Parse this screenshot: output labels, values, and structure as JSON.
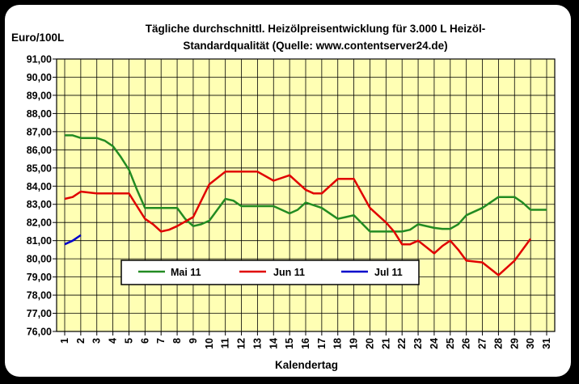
{
  "chart_data": {
    "type": "line",
    "title_line1": "Tägliche durchschnittl. Heizölpreisentwicklung für 3.000 L Heizöl-",
    "title_line2": "Standardqualität (Quelle: www.contentserver24.de)",
    "ylabel": "Euro/100L",
    "xlabel": "Kalendertag",
    "ylim": [
      76,
      91
    ],
    "xlim": [
      1,
      31
    ],
    "grid": true,
    "legend_position": "bottom-center",
    "yticks": [
      "76,00",
      "77,00",
      "78,00",
      "79,00",
      "80,00",
      "81,00",
      "82,00",
      "83,00",
      "84,00",
      "85,00",
      "86,00",
      "87,00",
      "88,00",
      "89,00",
      "90,00",
      "91,00"
    ],
    "xticks": [
      "1",
      "2",
      "3",
      "4",
      "5",
      "6",
      "7",
      "8",
      "9",
      "10",
      "11",
      "12",
      "13",
      "14",
      "15",
      "16",
      "17",
      "18",
      "19",
      "20",
      "21",
      "22",
      "23",
      "24",
      "25",
      "26",
      "27",
      "28",
      "29",
      "30",
      "31"
    ],
    "colors": {
      "plot_bg": "#FFFFB4",
      "grid": "#000000",
      "mai": "#228B22",
      "jun": "#E00000",
      "jul": "#0000CC"
    },
    "series": [
      {
        "name": "Mai 11",
        "x": [
          1,
          1.5,
          2,
          3,
          3.5,
          4,
          4.5,
          5,
          5.5,
          6,
          7,
          8,
          8.5,
          9,
          9.5,
          10,
          11,
          11.5,
          12,
          13,
          14,
          15,
          15.5,
          16,
          17,
          18,
          18.5,
          19,
          20,
          21,
          22,
          22.5,
          23,
          24,
          24.5,
          25,
          25.5,
          26,
          27,
          28,
          29,
          29.5,
          30,
          31
        ],
        "values": [
          86.8,
          86.8,
          86.65,
          86.65,
          86.5,
          86.2,
          85.6,
          84.9,
          83.8,
          82.8,
          82.8,
          82.8,
          82.2,
          81.8,
          81.9,
          82.1,
          83.3,
          83.2,
          82.9,
          82.9,
          82.9,
          82.5,
          82.7,
          83.1,
          82.8,
          82.2,
          82.3,
          82.4,
          81.5,
          81.5,
          81.5,
          81.6,
          81.9,
          81.7,
          81.65,
          81.65,
          81.9,
          82.4,
          82.8,
          83.4,
          83.4,
          83.1,
          82.7,
          82.7
        ]
      },
      {
        "name": "Jun 11",
        "x": [
          1,
          1.5,
          2,
          3,
          4,
          5,
          5.5,
          6,
          6.5,
          7,
          7.5,
          8,
          9,
          10,
          11,
          12,
          13,
          14,
          15,
          16,
          16.5,
          17,
          18,
          19,
          20,
          21,
          21.5,
          22,
          22.5,
          23,
          24,
          24.5,
          25,
          25.5,
          26,
          27,
          28,
          29,
          30
        ],
        "values": [
          83.3,
          83.4,
          83.7,
          83.6,
          83.6,
          83.6,
          82.9,
          82.2,
          81.9,
          81.5,
          81.6,
          81.8,
          82.3,
          84.1,
          84.8,
          84.8,
          84.8,
          84.3,
          84.6,
          83.8,
          83.6,
          83.6,
          84.4,
          84.4,
          82.8,
          82.0,
          81.5,
          80.8,
          80.8,
          81.0,
          80.3,
          80.7,
          81.0,
          80.5,
          79.9,
          79.8,
          79.1,
          79.9,
          81.1
        ]
      },
      {
        "name": "Jul 11",
        "x": [
          1,
          1.5,
          2
        ],
        "values": [
          80.8,
          81.0,
          81.3
        ]
      }
    ]
  }
}
